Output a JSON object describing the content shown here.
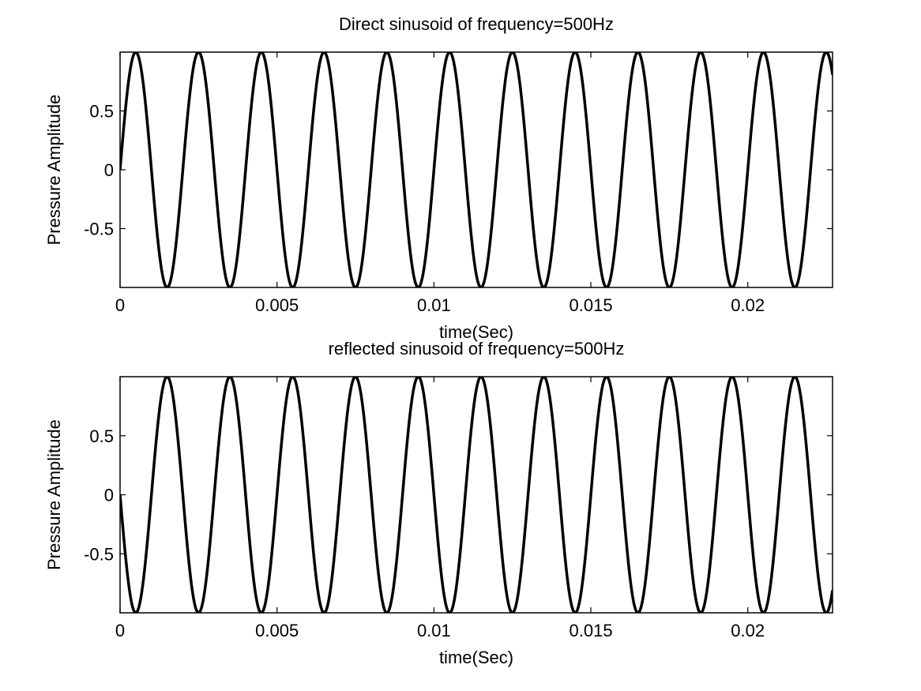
{
  "chart_data": [
    {
      "type": "line",
      "title": "Direct sinusoid of frequency=500Hz",
      "xlabel": "time(Sec)",
      "ylabel": "Pressure Amplitude",
      "xlim": [
        0,
        0.0227
      ],
      "ylim": [
        -1,
        1
      ],
      "xticks": [
        0,
        0.005,
        0.01,
        0.015,
        0.02
      ],
      "xtick_labels": [
        "0",
        "0.005",
        "0.01",
        "0.015",
        "0.02"
      ],
      "yticks": [
        -0.5,
        0,
        0.5
      ],
      "ytick_labels": [
        "-0.5",
        "0",
        "0.5"
      ],
      "grid": false,
      "function": "sin",
      "frequency_hz": 500,
      "amplitude": 1,
      "color": "#000000"
    },
    {
      "type": "line",
      "title": "reflected sinusoid of frequency=500Hz",
      "xlabel": "time(Sec)",
      "ylabel": "Pressure Amplitude",
      "xlim": [
        0,
        0.0227
      ],
      "ylim": [
        -1,
        1
      ],
      "xticks": [
        0,
        0.005,
        0.01,
        0.015,
        0.02
      ],
      "xtick_labels": [
        "0",
        "0.005",
        "0.01",
        "0.015",
        "0.02"
      ],
      "yticks": [
        -0.5,
        0,
        0.5
      ],
      "ytick_labels": [
        "-0.5",
        "0",
        "0.5"
      ],
      "grid": false,
      "function": "-sin",
      "frequency_hz": 500,
      "amplitude": 1,
      "color": "#000000"
    }
  ]
}
